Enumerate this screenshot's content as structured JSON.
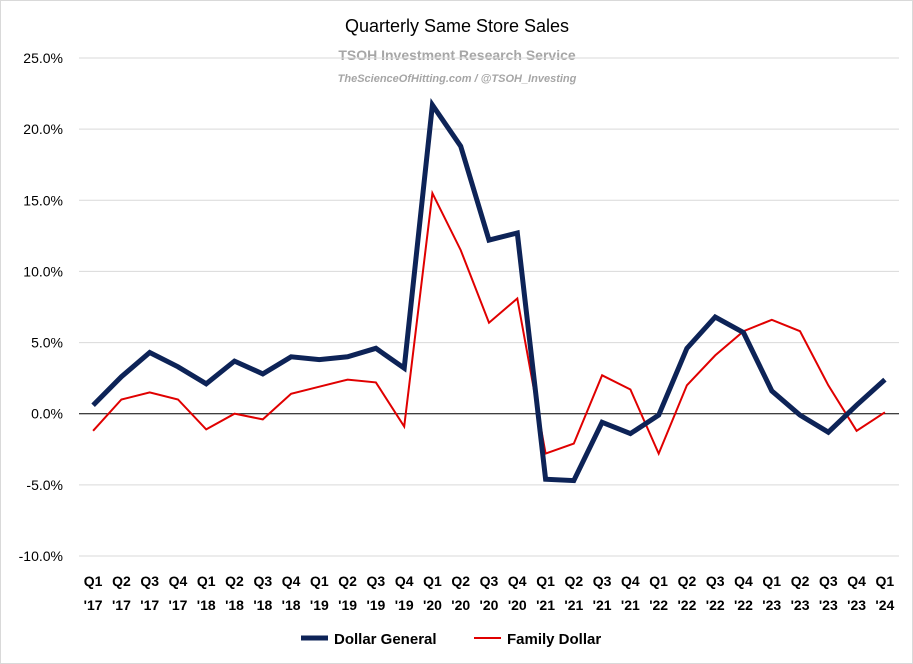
{
  "chart_data": {
    "type": "line",
    "title": "Quarterly Same Store Sales",
    "subtitle": "TSOH Investment Research Service",
    "credit": "TheScienceOfHitting.com / @TSOH_Investing",
    "ylim": [
      -10,
      25
    ],
    "yticks": [
      -10,
      -5,
      0,
      5,
      10,
      15,
      20,
      25
    ],
    "ytick_labels": [
      "-10.0%",
      "-5.0%",
      "0.0%",
      "5.0%",
      "10.0%",
      "15.0%",
      "20.0%",
      "25.0%"
    ],
    "grid": true,
    "legend_position": "bottom",
    "categories": [
      {
        "q": "Q1",
        "y": "'17"
      },
      {
        "q": "Q2",
        "y": "'17"
      },
      {
        "q": "Q3",
        "y": "'17"
      },
      {
        "q": "Q4",
        "y": "'17"
      },
      {
        "q": "Q1",
        "y": "'18"
      },
      {
        "q": "Q2",
        "y": "'18"
      },
      {
        "q": "Q3",
        "y": "'18"
      },
      {
        "q": "Q4",
        "y": "'18"
      },
      {
        "q": "Q1",
        "y": "'19"
      },
      {
        "q": "Q2",
        "y": "'19"
      },
      {
        "q": "Q3",
        "y": "'19"
      },
      {
        "q": "Q4",
        "y": "'19"
      },
      {
        "q": "Q1",
        "y": "'20"
      },
      {
        "q": "Q2",
        "y": "'20"
      },
      {
        "q": "Q3",
        "y": "'20"
      },
      {
        "q": "Q4",
        "y": "'20"
      },
      {
        "q": "Q1",
        "y": "'21"
      },
      {
        "q": "Q2",
        "y": "'21"
      },
      {
        "q": "Q3",
        "y": "'21"
      },
      {
        "q": "Q4",
        "y": "'21"
      },
      {
        "q": "Q1",
        "y": "'22"
      },
      {
        "q": "Q2",
        "y": "'22"
      },
      {
        "q": "Q3",
        "y": "'22"
      },
      {
        "q": "Q4",
        "y": "'22"
      },
      {
        "q": "Q1",
        "y": "'23"
      },
      {
        "q": "Q2",
        "y": "'23"
      },
      {
        "q": "Q3",
        "y": "'23"
      },
      {
        "q": "Q4",
        "y": "'23"
      },
      {
        "q": "Q1",
        "y": "'24"
      }
    ],
    "series": [
      {
        "name": "Dollar General",
        "color": "#0d2357",
        "values": [
          0.6,
          2.6,
          4.3,
          3.3,
          2.1,
          3.7,
          2.8,
          4.0,
          3.8,
          4.0,
          4.6,
          3.2,
          21.7,
          18.8,
          12.2,
          12.7,
          -4.6,
          -4.7,
          -0.6,
          -1.4,
          -0.1,
          4.6,
          6.8,
          5.7,
          1.6,
          -0.1,
          -1.3,
          0.6,
          2.4
        ]
      },
      {
        "name": "Family Dollar",
        "color": "#e00000",
        "values": [
          -1.2,
          1.0,
          1.5,
          1.0,
          -1.1,
          0.0,
          -0.4,
          1.4,
          1.9,
          2.4,
          2.2,
          -0.9,
          15.5,
          11.5,
          6.4,
          8.1,
          -2.8,
          -2.1,
          2.7,
          1.7,
          -2.8,
          2.0,
          4.1,
          5.8,
          6.6,
          5.8,
          2.0,
          -1.2,
          0.1
        ]
      }
    ]
  }
}
